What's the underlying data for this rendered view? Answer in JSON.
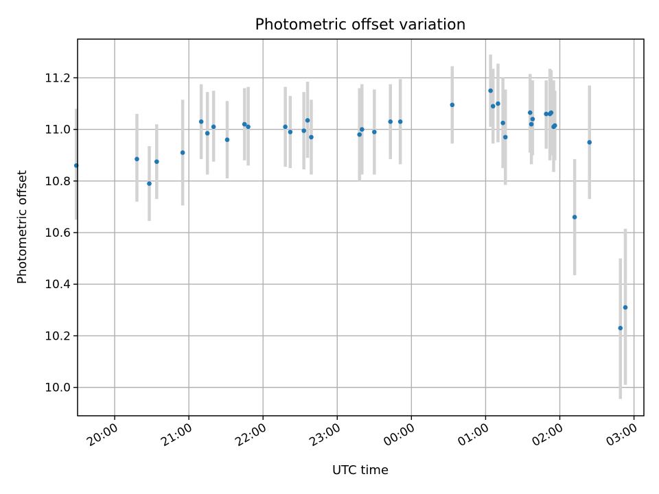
{
  "chart_data": {
    "type": "scatter",
    "title": "Photometric offset variation",
    "xlabel": "UTC time",
    "ylabel": "Photometric offset",
    "x_tick_labels": [
      "20:00",
      "21:00",
      "22:00",
      "23:00",
      "00:00",
      "01:00",
      "02:00",
      "03:00"
    ],
    "x_ticks": [
      "20:00",
      "21:00",
      "22:00",
      "23:00",
      "00:00",
      "01:00",
      "02:00",
      "03:00"
    ],
    "y_ticks": [
      10.0,
      10.2,
      10.4,
      10.6,
      10.8,
      11.0,
      11.2
    ],
    "y_tick_labels": [
      "10.0",
      "10.2",
      "10.4",
      "10.6",
      "10.8",
      "11.0",
      "11.2"
    ],
    "xlim": [
      "19:30",
      "03:08"
    ],
    "ylim": [
      9.89,
      11.35
    ],
    "grid": true,
    "marker_color": "#1f77b4",
    "errorbar_color": "#d3d3d3",
    "points": [
      {
        "time": "19:29",
        "y": 10.86,
        "lo": 10.65,
        "hi": 11.08
      },
      {
        "time": "20:18",
        "y": 10.885,
        "lo": 10.72,
        "hi": 11.06
      },
      {
        "time": "20:28",
        "y": 10.79,
        "lo": 10.645,
        "hi": 10.935
      },
      {
        "time": "20:34",
        "y": 10.875,
        "lo": 10.73,
        "hi": 11.02
      },
      {
        "time": "20:55",
        "y": 10.91,
        "lo": 10.705,
        "hi": 11.115
      },
      {
        "time": "21:10",
        "y": 11.03,
        "lo": 10.885,
        "hi": 11.175
      },
      {
        "time": "21:15",
        "y": 10.985,
        "lo": 10.825,
        "hi": 11.145
      },
      {
        "time": "21:20",
        "y": 11.01,
        "lo": 10.875,
        "hi": 11.15
      },
      {
        "time": "21:31",
        "y": 10.96,
        "lo": 10.81,
        "hi": 11.11
      },
      {
        "time": "21:45",
        "y": 11.02,
        "lo": 10.88,
        "hi": 11.16
      },
      {
        "time": "21:48",
        "y": 11.01,
        "lo": 10.86,
        "hi": 11.165
      },
      {
        "time": "22:18",
        "y": 11.01,
        "lo": 10.855,
        "hi": 11.165
      },
      {
        "time": "22:22",
        "y": 10.99,
        "lo": 10.85,
        "hi": 11.13
      },
      {
        "time": "22:33",
        "y": 10.995,
        "lo": 10.845,
        "hi": 11.145
      },
      {
        "time": "22:36",
        "y": 11.035,
        "lo": 10.89,
        "hi": 11.185
      },
      {
        "time": "22:39",
        "y": 10.97,
        "lo": 10.825,
        "hi": 11.115
      },
      {
        "time": "23:18",
        "y": 10.98,
        "lo": 10.8,
        "hi": 11.16
      },
      {
        "time": "23:20",
        "y": 11.0,
        "lo": 10.825,
        "hi": 11.175
      },
      {
        "time": "23:30",
        "y": 10.99,
        "lo": 10.825,
        "hi": 11.155
      },
      {
        "time": "23:43",
        "y": 11.03,
        "lo": 10.885,
        "hi": 11.175
      },
      {
        "time": "23:51",
        "y": 11.03,
        "lo": 10.865,
        "hi": 11.195
      },
      {
        "time": "00:33",
        "y": 11.095,
        "lo": 10.945,
        "hi": 11.245
      },
      {
        "time": "01:04",
        "y": 11.15,
        "lo": 11.01,
        "hi": 11.29
      },
      {
        "time": "01:06",
        "y": 11.09,
        "lo": 10.945,
        "hi": 11.235
      },
      {
        "time": "01:10",
        "y": 11.1,
        "lo": 10.95,
        "hi": 11.255
      },
      {
        "time": "01:14",
        "y": 11.025,
        "lo": 10.85,
        "hi": 11.2
      },
      {
        "time": "01:16",
        "y": 10.97,
        "lo": 10.785,
        "hi": 11.155
      },
      {
        "time": "01:36",
        "y": 11.065,
        "lo": 10.91,
        "hi": 11.215
      },
      {
        "time": "01:37",
        "y": 11.02,
        "lo": 10.865,
        "hi": 11.175
      },
      {
        "time": "01:38",
        "y": 11.04,
        "lo": 10.9,
        "hi": 11.19
      },
      {
        "time": "01:49",
        "y": 11.06,
        "lo": 10.925,
        "hi": 11.19
      },
      {
        "time": "01:52",
        "y": 11.06,
        "lo": 10.88,
        "hi": 11.235
      },
      {
        "time": "01:53",
        "y": 11.065,
        "lo": 10.9,
        "hi": 11.23
      },
      {
        "time": "01:55",
        "y": 11.01,
        "lo": 10.835,
        "hi": 11.19
      },
      {
        "time": "01:56",
        "y": 11.015,
        "lo": 10.88,
        "hi": 11.15
      },
      {
        "time": "02:12",
        "y": 10.66,
        "lo": 10.435,
        "hi": 10.885
      },
      {
        "time": "02:24",
        "y": 10.95,
        "lo": 10.73,
        "hi": 11.17
      },
      {
        "time": "02:49",
        "y": 10.23,
        "lo": 9.955,
        "hi": 10.5
      },
      {
        "time": "02:53",
        "y": 10.31,
        "lo": 10.01,
        "hi": 10.615
      }
    ]
  }
}
